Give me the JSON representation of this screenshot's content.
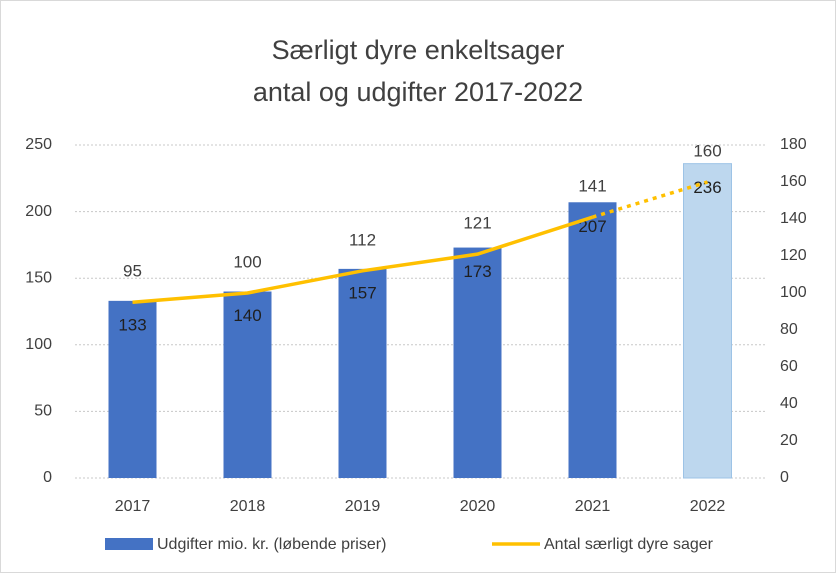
{
  "chart_data": {
    "type": "bar_line",
    "title": [
      "Særligt dyre enkeltsager",
      "antal og udgifter 2017-2022"
    ],
    "categories": [
      "2017",
      "2018",
      "2019",
      "2020",
      "2021",
      "2022"
    ],
    "series": [
      {
        "name": "Udgifter mio. kr. (løbende priser)",
        "type": "bar",
        "color": "#4472c4",
        "bar_colors": [
          "#4472c4",
          "#4472c4",
          "#4472c4",
          "#4472c4",
          "#4472c4",
          "#bdd7ee"
        ],
        "values": [
          133,
          140,
          157,
          173,
          207,
          236
        ]
      },
      {
        "name": "Antal særligt dyre sager",
        "type": "line",
        "axis": "y2",
        "color": "#ffc000",
        "dash_last_segment": true,
        "values": [
          95,
          100,
          112,
          121,
          141,
          160
        ]
      }
    ],
    "ylim": [
      0,
      250
    ],
    "yticks": [
      0,
      50,
      100,
      150,
      200,
      250
    ],
    "y2lim": [
      0,
      180
    ],
    "y2ticks": [
      0,
      20,
      40,
      60,
      80,
      100,
      120,
      140,
      160,
      180
    ],
    "grid": true,
    "legend": "bottom"
  }
}
